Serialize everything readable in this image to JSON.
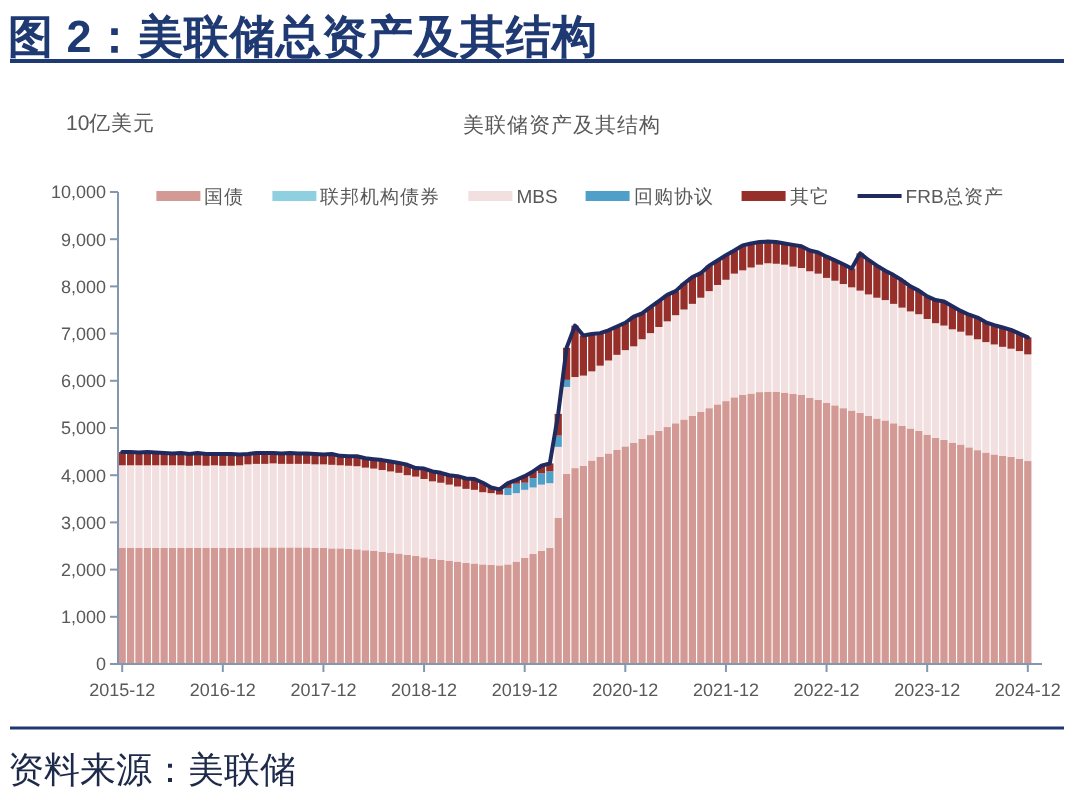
{
  "chart_data": {
    "type": "bar",
    "stacked": true,
    "title": "图 2：美联储总资产及其结构",
    "subtitle": "美联储资产及其结构",
    "ylabel": "10亿美元",
    "annotations": [
      "资料来源：美联储"
    ],
    "legend": "top",
    "ylim": [
      0,
      10000
    ],
    "yticks": [
      0,
      {
        "value": 1000,
        "label": "1,000"
      },
      {
        "value": 2000,
        "label": "2,000"
      },
      {
        "value": 3000,
        "label": "3,000"
      },
      {
        "value": 4000,
        "label": "4,000"
      },
      {
        "value": 5000,
        "label": "5,000"
      },
      {
        "value": 6000,
        "label": "6,000"
      },
      {
        "value": 7000,
        "label": "7,000"
      },
      {
        "value": 8000,
        "label": "8,000"
      },
      {
        "value": 9000,
        "label": "9,000"
      },
      {
        "value": 10000,
        "label": "10,000"
      }
    ],
    "categories": [
      "2015-12",
      null,
      null,
      null,
      null,
      null,
      null,
      null,
      null,
      null,
      null,
      null,
      "2016-12",
      null,
      null,
      null,
      null,
      null,
      null,
      null,
      null,
      null,
      null,
      null,
      "2017-12",
      null,
      null,
      null,
      null,
      null,
      null,
      null,
      null,
      null,
      null,
      null,
      "2018-12",
      null,
      null,
      null,
      null,
      null,
      null,
      null,
      null,
      null,
      null,
      null,
      "2019-12",
      null,
      null,
      null,
      null,
      null,
      null,
      null,
      null,
      null,
      null,
      null,
      "2020-12",
      null,
      null,
      null,
      null,
      null,
      null,
      null,
      null,
      null,
      null,
      null,
      "2021-12",
      null,
      null,
      null,
      null,
      null,
      null,
      null,
      null,
      null,
      null,
      null,
      "2022-12",
      null,
      null,
      null,
      null,
      null,
      null,
      null,
      null,
      null,
      null,
      null,
      "2023-12",
      null,
      null,
      null,
      null,
      null,
      null,
      null,
      null,
      null,
      null,
      null,
      "2024-12"
    ],
    "series": [
      {
        "name": "国债",
        "color": "#d39994",
        "values": [
          2460,
          2460,
          2460,
          2460,
          2460,
          2460,
          2460,
          2460,
          2460,
          2460,
          2460,
          2460,
          2460,
          2460,
          2460,
          2460,
          2470,
          2470,
          2470,
          2470,
          2470,
          2470,
          2470,
          2460,
          2460,
          2450,
          2450,
          2440,
          2430,
          2410,
          2400,
          2380,
          2360,
          2340,
          2310,
          2290,
          2260,
          2230,
          2210,
          2190,
          2170,
          2140,
          2130,
          2110,
          2100,
          2090,
          2110,
          2170,
          2250,
          2330,
          2400,
          2460,
          3100,
          4030,
          4150,
          4200,
          4310,
          4390,
          4460,
          4540,
          4610,
          4690,
          4770,
          4850,
          4940,
          5020,
          5100,
          5180,
          5260,
          5340,
          5420,
          5500,
          5570,
          5650,
          5700,
          5730,
          5760,
          5770,
          5770,
          5750,
          5720,
          5700,
          5640,
          5600,
          5530,
          5480,
          5420,
          5370,
          5320,
          5260,
          5200,
          5160,
          5100,
          5050,
          4990,
          4940,
          4860,
          4790,
          4750,
          4690,
          4650,
          4590,
          4530,
          4480,
          4440,
          4410,
          4390,
          4350,
          4300
        ]
      },
      {
        "name": "联邦机构债券",
        "color": "#8fd0e0",
        "values": [
          0,
          0,
          0,
          0,
          0,
          0,
          0,
          0,
          0,
          0,
          0,
          0,
          0,
          0,
          0,
          0,
          0,
          0,
          0,
          0,
          0,
          0,
          0,
          0,
          0,
          0,
          0,
          0,
          0,
          0,
          0,
          0,
          0,
          0,
          0,
          0,
          0,
          0,
          0,
          0,
          0,
          0,
          0,
          0,
          0,
          0,
          0,
          0,
          0,
          0,
          0,
          0,
          0,
          0,
          0,
          0,
          0,
          0,
          0,
          0,
          0,
          0,
          0,
          0,
          0,
          0,
          0,
          0,
          0,
          0,
          0,
          0,
          0,
          0,
          0,
          0,
          0,
          0,
          0,
          0,
          0,
          0,
          0,
          0,
          0,
          0,
          0,
          0,
          0,
          0,
          0,
          0,
          0,
          0,
          0,
          0,
          0,
          0,
          0,
          0,
          0,
          0,
          0,
          0,
          0,
          0,
          0,
          0,
          0
        ]
      },
      {
        "name": "MBS",
        "color": "#f2dfdf",
        "values": [
          1750,
          1750,
          1750,
          1750,
          1750,
          1750,
          1750,
          1750,
          1740,
          1750,
          1740,
          1750,
          1740,
          1740,
          1750,
          1770,
          1770,
          1770,
          1780,
          1770,
          1770,
          1770,
          1770,
          1770,
          1770,
          1770,
          1760,
          1760,
          1760,
          1750,
          1740,
          1730,
          1720,
          1710,
          1690,
          1680,
          1660,
          1640,
          1630,
          1610,
          1590,
          1570,
          1560,
          1530,
          1520,
          1500,
          1470,
          1450,
          1440,
          1410,
          1400,
          1370,
          1500,
          1840,
          1930,
          1910,
          1890,
          1930,
          1970,
          2010,
          2040,
          2040,
          2110,
          2160,
          2200,
          2240,
          2290,
          2330,
          2370,
          2420,
          2480,
          2530,
          2570,
          2620,
          2640,
          2670,
          2700,
          2720,
          2710,
          2710,
          2700,
          2690,
          2680,
          2670,
          2650,
          2640,
          2630,
          2610,
          2590,
          2570,
          2560,
          2550,
          2530,
          2500,
          2480,
          2470,
          2450,
          2430,
          2420,
          2400,
          2390,
          2370,
          2350,
          2340,
          2330,
          2310,
          2290,
          2280,
          2260
        ]
      },
      {
        "name": "回购协议",
        "color": "#4f9fc8",
        "values": [
          0,
          0,
          0,
          0,
          0,
          0,
          0,
          0,
          0,
          0,
          0,
          0,
          0,
          0,
          0,
          0,
          0,
          0,
          0,
          0,
          0,
          0,
          0,
          0,
          0,
          0,
          0,
          0,
          0,
          0,
          0,
          0,
          0,
          0,
          0,
          0,
          0,
          0,
          0,
          0,
          0,
          0,
          0,
          0,
          0,
          0,
          150,
          200,
          150,
          200,
          240,
          250,
          240,
          150,
          0,
          0,
          0,
          0,
          0,
          0,
          0,
          0,
          0,
          0,
          0,
          0,
          0,
          0,
          0,
          0,
          0,
          0,
          0,
          0,
          0,
          0,
          0,
          0,
          0,
          0,
          0,
          0,
          0,
          0,
          0,
          0,
          0,
          0,
          0,
          0,
          0,
          0,
          0,
          0,
          0,
          0,
          0,
          0,
          0,
          0,
          0,
          0,
          0,
          0,
          0,
          0,
          0,
          0,
          0
        ]
      },
      {
        "name": "其它",
        "color": "#962f2a",
        "values": [
          280,
          280,
          270,
          280,
          270,
          260,
          250,
          260,
          250,
          260,
          250,
          240,
          250,
          250,
          230,
          220,
          230,
          230,
          220,
          220,
          230,
          220,
          220,
          220,
          210,
          230,
          200,
          200,
          210,
          200,
          200,
          210,
          210,
          210,
          220,
          180,
          220,
          210,
          210,
          200,
          220,
          220,
          230,
          200,
          120,
          110,
          100,
          80,
          140,
          140,
          160,
          170,
          460,
          680,
          1090,
          850,
          790,
          690,
          640,
          600,
          580,
          630,
          550,
          550,
          550,
          560,
          510,
          550,
          570,
          520,
          540,
          520,
          520,
          490,
          530,
          510,
          480,
          460,
          460,
          450,
          460,
          460,
          440,
          450,
          450,
          430,
          420,
          400,
          790,
          730,
          680,
          620,
          610,
          580,
          530,
          500,
          480,
          490,
          510,
          490,
          440,
          440,
          460,
          420,
          410,
          410,
          400,
          370,
          360
        ]
      },
      {
        "name": "FRB总资产",
        "type": "line",
        "color": "#1f2a5e",
        "values": [
          4490,
          4490,
          4480,
          4490,
          4480,
          4470,
          4460,
          4470,
          4450,
          4470,
          4450,
          4450,
          4450,
          4450,
          4440,
          4450,
          4470,
          4470,
          4470,
          4460,
          4470,
          4460,
          4460,
          4450,
          4440,
          4450,
          4410,
          4400,
          4400,
          4360,
          4340,
          4320,
          4290,
          4260,
          4220,
          4150,
          4140,
          4080,
          4050,
          4000,
          3980,
          3930,
          3920,
          3840,
          3740,
          3700,
          3830,
          3900,
          3980,
          4080,
          4200,
          4250,
          5300,
          6700,
          7170,
          6960,
          6990,
          7010,
          7070,
          7150,
          7230,
          7360,
          7430,
          7560,
          7690,
          7820,
          7900,
          8060,
          8200,
          8280,
          8440,
          8550,
          8660,
          8760,
          8870,
          8910,
          8940,
          8950,
          8940,
          8910,
          8880,
          8850,
          8760,
          8720,
          8630,
          8550,
          8470,
          8380,
          8700,
          8560,
          8440,
          8330,
          8240,
          8130,
          8000,
          7910,
          7790,
          7710,
          7680,
          7580,
          7480,
          7400,
          7340,
          7240,
          7180,
          7130,
          7080,
          7000,
          6920
        ]
      }
    ]
  }
}
